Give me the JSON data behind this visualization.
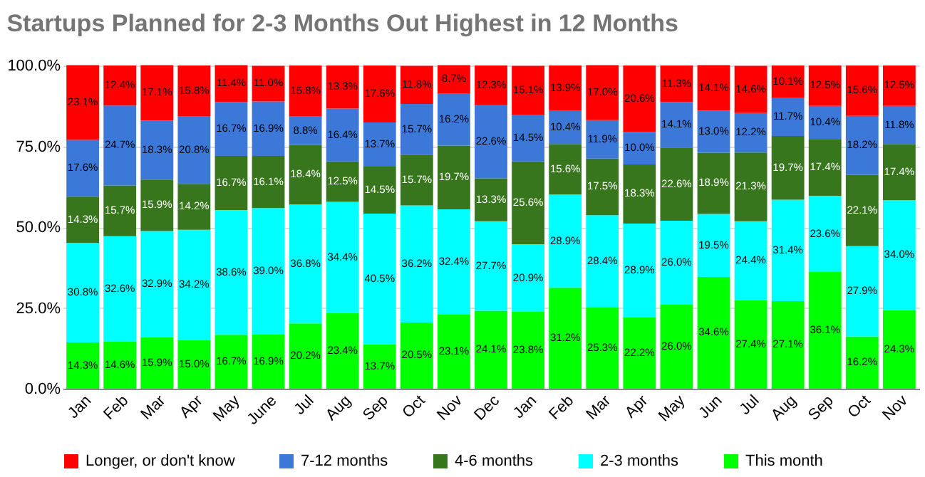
{
  "chart_data": {
    "type": "bar",
    "stacked": true,
    "title": "Startups Planned for 2-3 Months Out Highest in 12 Months",
    "categories": [
      "Jan",
      "Feb",
      "Mar",
      "Apr",
      "May",
      "June",
      "Jul",
      "Aug",
      "Sep",
      "Oct",
      "Nov",
      "Dec",
      "Jan",
      "Feb",
      "Mar",
      "Apr",
      "May",
      "Jun",
      "Jul",
      "Aug",
      "Sep",
      "Oct",
      "Nov"
    ],
    "series": [
      {
        "name": "This month",
        "color": "#00ff00",
        "values": [
          14.3,
          14.6,
          15.9,
          15.0,
          16.7,
          16.9,
          20.2,
          23.4,
          13.7,
          20.5,
          23.1,
          24.1,
          23.8,
          31.2,
          25.3,
          22.2,
          26.0,
          34.6,
          27.4,
          27.1,
          36.1,
          16.2,
          24.3
        ],
        "value_labels": [
          "14.3%",
          "14.6%",
          "15.9%",
          "15.0%",
          "16.7%",
          "16.9%",
          "20.2%",
          "23.4%",
          "13.7%",
          "20.5%",
          "23.1%",
          "24.1%",
          "23.8%",
          "31.2%",
          "25.3%",
          "22.2%",
          "26.0%",
          "34.6%",
          "27.4%",
          "27.1%",
          "36.1%",
          "16.2%",
          "24.3%"
        ]
      },
      {
        "name": "2-3 months",
        "color": "#00ffff",
        "values": [
          30.8,
          32.6,
          32.9,
          34.2,
          38.6,
          39.0,
          36.8,
          34.4,
          40.5,
          36.2,
          32.4,
          27.7,
          20.9,
          28.9,
          28.4,
          28.9,
          26.0,
          19.5,
          24.4,
          31.4,
          23.6,
          27.9,
          34.0
        ],
        "value_labels": [
          "30.8%",
          "32.6%",
          "32.9%",
          "34.2%",
          "38.6%",
          "39.0%",
          "36.8%",
          "34.4%",
          "40.5%",
          "36.2%",
          "32.4%",
          "27.7%",
          "20.9%",
          "28.9%",
          "28.4%",
          "28.9%",
          "26.0%",
          "19.5%",
          "24.4%",
          "31.4%",
          "23.6%",
          "27.9%",
          "34.0%"
        ]
      },
      {
        "name": "4-6 months",
        "color": "#38761d",
        "values": [
          14.3,
          15.7,
          15.9,
          14.2,
          16.7,
          16.1,
          18.4,
          12.5,
          14.5,
          15.7,
          19.7,
          13.3,
          25.6,
          15.6,
          17.5,
          18.3,
          22.6,
          18.9,
          21.3,
          19.7,
          17.4,
          22.1,
          17.4
        ],
        "value_labels": [
          "14.3%",
          "15.7%",
          "15.9%",
          "14.2%",
          "16.7%",
          "16.1%",
          "18.4%",
          "12.5%",
          "14.5%",
          "15.7%",
          "19.7%",
          "13.3%",
          "25.6%",
          "15.6%",
          "17.5%",
          "18.3%",
          "22.6%",
          "18.9%",
          "21.3%",
          "19.7%",
          "17.4%",
          "22.1%",
          "17.4%"
        ]
      },
      {
        "name": "7-12 months",
        "color": "#3c78d8",
        "values": [
          17.6,
          24.7,
          18.3,
          20.8,
          16.7,
          16.9,
          8.8,
          16.4,
          13.7,
          15.7,
          16.2,
          22.6,
          14.5,
          10.4,
          11.9,
          10.0,
          14.1,
          13.0,
          12.2,
          11.7,
          10.4,
          18.2,
          11.8
        ],
        "value_labels": [
          "17.6%",
          "24.7%",
          "18.3%",
          "20.8%",
          "16.7%",
          "16.9%",
          "8.8%",
          "16.4%",
          "13.7%",
          "15.7%",
          "16.2%",
          "22.6%",
          "14.5%",
          "10.4%",
          "11.9%",
          "10.0%",
          "14.1%",
          "13.0%",
          "12.2%",
          "11.7%",
          "10.4%",
          "18.2%",
          "11.8%"
        ]
      },
      {
        "name": "Longer, or don't know",
        "color": "#ff0000",
        "values": [
          23.1,
          12.4,
          17.1,
          15.8,
          11.4,
          11.0,
          15.8,
          13.3,
          17.6,
          11.8,
          8.7,
          12.3,
          15.1,
          13.9,
          17.0,
          20.6,
          11.3,
          14.1,
          14.6,
          10.1,
          12.5,
          15.6,
          12.5
        ],
        "value_labels": [
          "23.1%",
          "12.4%",
          "17.1%",
          "15.8%",
          "11.4%",
          "11.0%",
          "15.8%",
          "13.3%",
          "17.6%",
          "11.8%",
          "8.7%",
          "12.3%",
          "15.1%",
          "13.9%",
          "17.0%",
          "20.6%",
          "11.3%",
          "14.1%",
          "14.6%",
          "10.1%",
          "12.5%",
          "15.6%",
          "12.5%"
        ]
      }
    ],
    "ylim": [
      0,
      100
    ],
    "yticks": [
      {
        "value": 0,
        "label": "0.0%"
      },
      {
        "value": 25,
        "label": "25.0%"
      },
      {
        "value": 50,
        "label": "50.0%"
      },
      {
        "value": 75,
        "label": "75.0%"
      },
      {
        "value": 100,
        "label": "100.0%"
      }
    ],
    "grid": "y",
    "legend": "bottom"
  }
}
